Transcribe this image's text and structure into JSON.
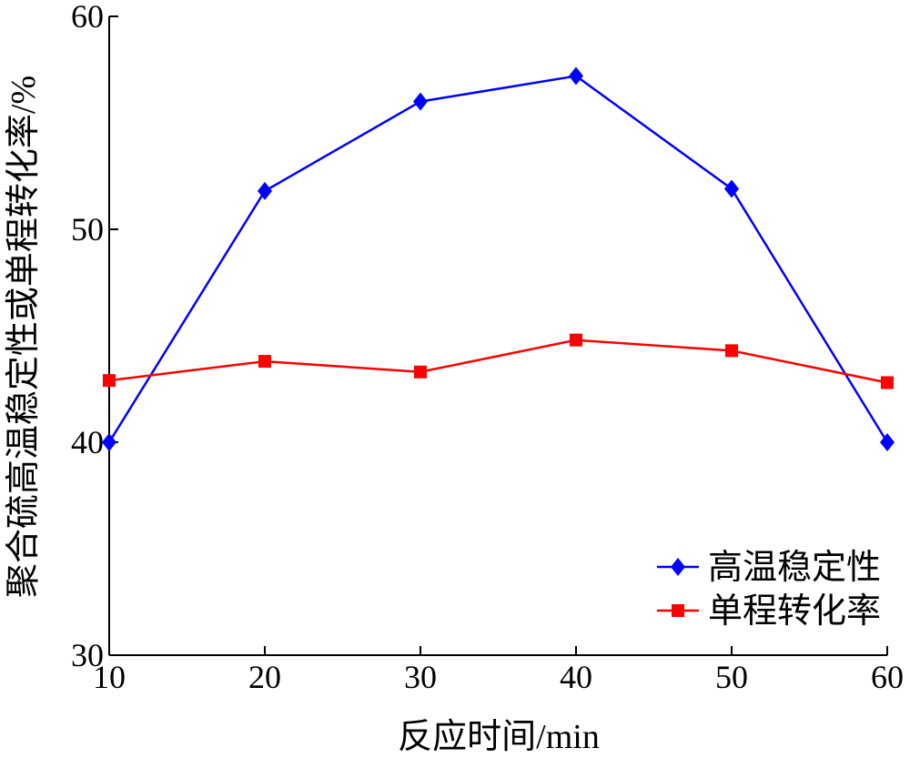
{
  "chart_data": {
    "type": "line",
    "title": "",
    "xlabel": "反应时间/min",
    "ylabel": "聚合硫高温稳定性或单程转化率/%",
    "x": [
      10,
      20,
      30,
      40,
      50,
      60
    ],
    "xlim": [
      10,
      60
    ],
    "ylim": [
      30,
      60
    ],
    "xticks": [
      "10",
      "20",
      "30",
      "40",
      "50",
      "60"
    ],
    "yticks": [
      "30",
      "40",
      "50",
      "60"
    ],
    "grid": false,
    "legend_position": "bottom-right",
    "series": [
      {
        "name": "高温稳定性",
        "color": "#0000ff",
        "marker": "diamond",
        "values": [
          40.0,
          51.8,
          56.0,
          57.2,
          51.9,
          40.0
        ]
      },
      {
        "name": "单程转化率",
        "color": "#ff0000",
        "marker": "square",
        "values": [
          42.9,
          43.8,
          43.3,
          44.8,
          44.3,
          42.8
        ]
      }
    ]
  }
}
